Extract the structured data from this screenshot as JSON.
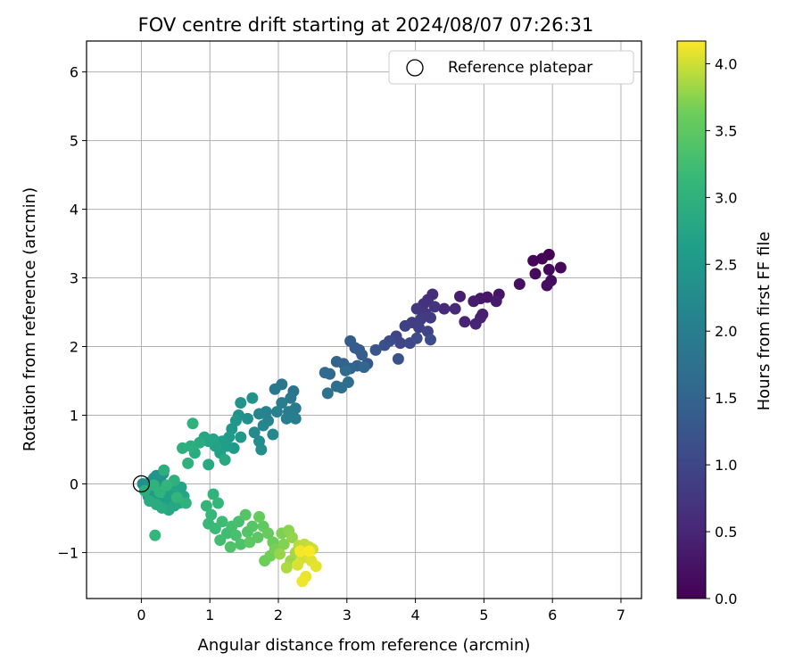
{
  "chart_data": {
    "type": "scatter",
    "title": "FOV centre drift starting at 2024/08/07 07:26:31",
    "xlabel": "Angular distance from reference (arcmin)",
    "ylabel": "Rotation from reference (arcmin)",
    "xlim": [
      -0.8,
      7.3
    ],
    "ylim": [
      -1.67,
      6.45
    ],
    "xticks": [
      0,
      1,
      2,
      3,
      4,
      5,
      6,
      7
    ],
    "yticks": [
      -1,
      0,
      1,
      2,
      3,
      4,
      5,
      6
    ],
    "xtick_labels": [
      "0",
      "1",
      "2",
      "3",
      "4",
      "5",
      "6",
      "7"
    ],
    "ytick_labels": [
      "−1",
      "0",
      "1",
      "2",
      "3",
      "4",
      "5",
      "6"
    ],
    "grid": true,
    "legend": {
      "position": "top-right",
      "entries": [
        "Reference platepar"
      ]
    },
    "reference_point": {
      "name": "Reference platepar",
      "x": 0,
      "y": 0,
      "marker": "open-circle"
    },
    "colorbar": {
      "label": "Hours from first FF file",
      "colormap": "viridis",
      "range": [
        0.0,
        4.17
      ],
      "ticks": [
        0.0,
        0.5,
        1.0,
        1.5,
        2.0,
        2.5,
        3.0,
        3.5,
        4.0
      ],
      "tick_labels": [
        "0.0",
        "0.5",
        "1.0",
        "1.5",
        "2.0",
        "2.5",
        "3.0",
        "3.5",
        "4.0"
      ]
    },
    "series": [
      {
        "marker": "filled-circle",
        "points": [
          [
            5.95,
            3.34,
            0.02
          ],
          [
            5.85,
            3.28,
            0.05
          ],
          [
            5.72,
            3.25,
            0.07
          ],
          [
            6.12,
            3.15,
            0.09
          ],
          [
            5.95,
            3.12,
            0.11
          ],
          [
            5.75,
            3.06,
            0.13
          ],
          [
            5.98,
            2.96,
            0.15
          ],
          [
            5.92,
            2.89,
            0.17
          ],
          [
            5.52,
            2.91,
            0.19
          ],
          [
            5.22,
            2.76,
            0.25
          ],
          [
            5.05,
            2.72,
            0.28
          ],
          [
            4.95,
            2.7,
            0.31
          ],
          [
            5.18,
            2.66,
            0.33
          ],
          [
            4.85,
            2.66,
            0.36
          ],
          [
            4.65,
            2.73,
            0.39
          ],
          [
            4.98,
            2.47,
            0.41
          ],
          [
            4.95,
            2.42,
            0.44
          ],
          [
            4.72,
            2.36,
            0.47
          ],
          [
            4.88,
            2.33,
            0.5
          ],
          [
            4.58,
            2.55,
            0.53
          ],
          [
            4.42,
            2.55,
            0.56
          ],
          [
            4.25,
            2.76,
            0.62
          ],
          [
            4.18,
            2.68,
            0.65
          ],
          [
            4.12,
            2.62,
            0.68
          ],
          [
            4.28,
            2.58,
            0.71
          ],
          [
            4.02,
            2.55,
            0.74
          ],
          [
            4.15,
            2.48,
            0.77
          ],
          [
            4.22,
            2.42,
            0.8
          ],
          [
            4.08,
            2.4,
            0.83
          ],
          [
            3.95,
            2.35,
            0.86
          ],
          [
            4.05,
            2.28,
            0.89
          ],
          [
            3.85,
            2.3,
            0.92
          ],
          [
            4.18,
            2.22,
            0.95
          ],
          [
            3.72,
            2.15,
            0.98
          ],
          [
            3.78,
            2.05,
            1.01
          ],
          [
            3.92,
            2.05,
            1.04
          ],
          [
            4.02,
            2.12,
            1.07
          ],
          [
            4.22,
            2.1,
            1.1
          ],
          [
            3.62,
            2.08,
            1.13
          ],
          [
            3.55,
            2.02,
            1.16
          ],
          [
            3.75,
            1.82,
            1.19
          ],
          [
            3.42,
            1.95,
            1.25
          ],
          [
            3.3,
            1.75,
            1.28
          ],
          [
            3.18,
            1.95,
            1.31
          ],
          [
            3.12,
            1.98,
            1.34
          ],
          [
            3.05,
            2.08,
            1.37
          ],
          [
            3.22,
            1.88,
            1.4
          ],
          [
            3.15,
            1.72,
            1.43
          ],
          [
            2.95,
            1.75,
            1.46
          ],
          [
            2.85,
            1.78,
            1.49
          ],
          [
            3.05,
            1.68,
            1.52
          ],
          [
            3.25,
            1.7,
            1.55
          ],
          [
            2.75,
            1.6,
            1.58
          ],
          [
            2.68,
            1.62,
            1.61
          ],
          [
            2.98,
            1.65,
            1.64
          ],
          [
            2.85,
            1.42,
            1.67
          ],
          [
            3.02,
            1.48,
            1.7
          ],
          [
            2.92,
            1.4,
            1.73
          ],
          [
            2.72,
            1.32,
            1.76
          ],
          [
            2.22,
            1.35,
            1.8
          ],
          [
            2.05,
            1.45,
            1.83
          ],
          [
            2.18,
            1.25,
            1.86
          ],
          [
            1.95,
            1.38,
            1.89
          ],
          [
            2.25,
            1.1,
            1.92
          ],
          [
            2.15,
            1.05,
            1.95
          ],
          [
            2.05,
            1.18,
            1.98
          ],
          [
            2.25,
            0.95,
            2.0
          ],
          [
            2.12,
            0.95,
            2.03
          ],
          [
            1.98,
            1.05,
            2.06
          ],
          [
            1.82,
            1.05,
            2.09
          ],
          [
            1.85,
            0.92,
            2.12
          ],
          [
            1.72,
            1.02,
            2.15
          ],
          [
            1.78,
            0.85,
            2.18
          ],
          [
            1.92,
            0.72,
            2.21
          ],
          [
            1.65,
            0.75,
            2.24
          ],
          [
            1.72,
            0.62,
            2.27
          ],
          [
            1.75,
            0.5,
            2.3
          ],
          [
            1.55,
            0.95,
            2.33
          ],
          [
            1.42,
            1.0,
            2.36
          ],
          [
            1.62,
            1.25,
            2.39
          ],
          [
            1.45,
            1.18,
            2.42
          ],
          [
            1.38,
            0.92,
            2.45
          ],
          [
            1.32,
            0.8,
            2.48
          ],
          [
            1.45,
            0.68,
            2.51
          ],
          [
            1.28,
            0.68,
            2.54
          ],
          [
            1.35,
            0.52,
            2.57
          ],
          [
            1.25,
            0.55,
            2.6
          ],
          [
            1.18,
            0.62,
            2.63
          ],
          [
            1.15,
            0.45,
            2.66
          ],
          [
            1.08,
            0.55,
            2.69
          ],
          [
            1.05,
            0.65,
            2.72
          ],
          [
            0.98,
            0.62,
            2.75
          ],
          [
            0.92,
            0.68,
            2.78
          ],
          [
            1.22,
            0.35,
            2.81
          ],
          [
            0.98,
            0.28,
            2.84
          ],
          [
            0.85,
            0.6,
            2.87
          ],
          [
            0.78,
            0.45,
            2.9
          ],
          [
            0.72,
            0.55,
            2.93
          ],
          [
            0.6,
            0.52,
            2.96
          ],
          [
            0.68,
            0.3,
            2.99
          ],
          [
            0.75,
            0.88,
            3.02
          ],
          [
            0.02,
            0.0,
            2.3
          ],
          [
            0.08,
            -0.05,
            2.32
          ],
          [
            0.12,
            0.02,
            2.35
          ],
          [
            0.18,
            0.08,
            2.38
          ],
          [
            0.22,
            0.12,
            2.4
          ],
          [
            0.28,
            0.05,
            2.42
          ],
          [
            0.32,
            0.15,
            2.45
          ],
          [
            0.25,
            -0.05,
            2.48
          ],
          [
            0.15,
            -0.12,
            2.5
          ],
          [
            0.1,
            -0.18,
            2.52
          ],
          [
            0.2,
            -0.22,
            2.55
          ],
          [
            0.28,
            -0.28,
            2.58
          ],
          [
            0.35,
            -0.32,
            2.6
          ],
          [
            0.42,
            -0.25,
            2.62
          ],
          [
            0.38,
            -0.15,
            2.65
          ],
          [
            0.45,
            -0.08,
            2.68
          ],
          [
            0.52,
            -0.12,
            2.7
          ],
          [
            0.58,
            -0.05,
            2.72
          ],
          [
            0.62,
            -0.18,
            2.75
          ],
          [
            0.55,
            -0.28,
            2.78
          ],
          [
            0.48,
            -0.32,
            2.8
          ],
          [
            0.4,
            -0.38,
            2.82
          ],
          [
            0.3,
            -0.35,
            2.85
          ],
          [
            0.22,
            -0.3,
            2.88
          ],
          [
            0.12,
            -0.25,
            2.9
          ],
          [
            0.05,
            -0.1,
            2.92
          ],
          [
            0.33,
            0.2,
            2.95
          ],
          [
            0.48,
            0.05,
            2.98
          ],
          [
            0.65,
            -0.28,
            3.0
          ],
          [
            0.18,
            -0.02,
            3.02
          ],
          [
            0.27,
            -0.12,
            3.04
          ],
          [
            0.37,
            -0.02,
            3.06
          ],
          [
            0.52,
            -0.2,
            3.08
          ],
          [
            0.2,
            -0.75,
            3.1
          ],
          [
            1.05,
            -0.15,
            3.05
          ],
          [
            0.95,
            -0.32,
            3.08
          ],
          [
            1.12,
            -0.28,
            3.1
          ],
          [
            1.02,
            -0.45,
            3.12
          ],
          [
            0.98,
            -0.58,
            3.15
          ],
          [
            1.08,
            -0.65,
            3.18
          ],
          [
            1.18,
            -0.55,
            3.2
          ],
          [
            1.25,
            -0.72,
            3.22
          ],
          [
            1.15,
            -0.82,
            3.25
          ],
          [
            1.32,
            -0.62,
            3.28
          ],
          [
            1.42,
            -0.55,
            3.3
          ],
          [
            1.38,
            -0.75,
            3.32
          ],
          [
            1.45,
            -0.88,
            3.35
          ],
          [
            1.3,
            -0.92,
            3.38
          ],
          [
            1.55,
            -0.7,
            3.4
          ],
          [
            1.52,
            -0.45,
            3.42
          ],
          [
            1.62,
            -0.62,
            3.45
          ],
          [
            1.58,
            -0.85,
            3.48
          ],
          [
            1.7,
            -0.78,
            3.5
          ],
          [
            1.78,
            -0.62,
            3.52
          ],
          [
            1.72,
            -0.48,
            3.55
          ],
          [
            1.85,
            -0.72,
            3.58
          ],
          [
            1.92,
            -0.85,
            3.6
          ],
          [
            1.8,
            -1.12,
            3.62
          ],
          [
            1.88,
            -1.05,
            3.65
          ],
          [
            1.95,
            -0.95,
            3.68
          ],
          [
            2.05,
            -0.72,
            3.7
          ],
          [
            2.08,
            -0.88,
            3.72
          ],
          [
            2.15,
            -0.68,
            3.75
          ],
          [
            2.2,
            -0.78,
            3.78
          ],
          [
            2.02,
            -1.02,
            3.8
          ],
          [
            2.18,
            -1.12,
            3.82
          ],
          [
            2.25,
            -1.0,
            3.85
          ],
          [
            2.12,
            -1.22,
            3.88
          ],
          [
            2.3,
            -0.9,
            3.92
          ],
          [
            2.38,
            -0.88,
            3.94
          ],
          [
            2.45,
            -0.92,
            3.96
          ],
          [
            2.5,
            -0.95,
            3.98
          ],
          [
            2.42,
            -1.02,
            4.0
          ],
          [
            2.35,
            -1.08,
            4.02
          ],
          [
            2.28,
            -1.18,
            4.04
          ],
          [
            2.48,
            -1.12,
            4.06
          ],
          [
            2.55,
            -1.2,
            4.08
          ],
          [
            2.4,
            -1.35,
            4.1
          ],
          [
            2.35,
            -1.42,
            4.12
          ],
          [
            2.32,
            -0.98,
            4.14
          ],
          [
            2.45,
            -0.98,
            4.16
          ]
        ]
      }
    ]
  }
}
